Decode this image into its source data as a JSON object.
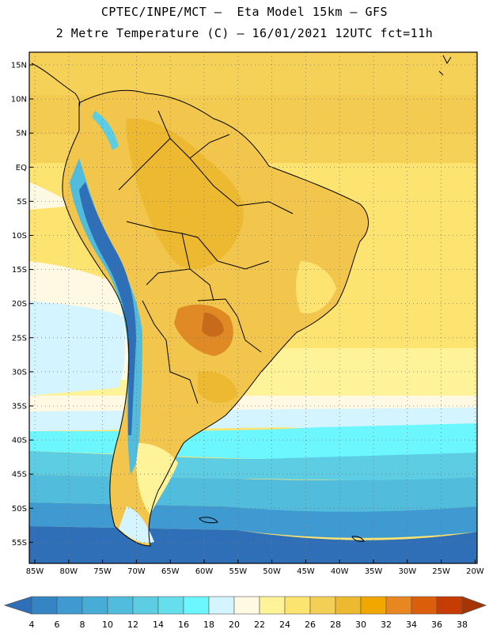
{
  "header": {
    "line1": "CPTEC/INPE/MCT –  Eta Model 15km – GFS",
    "line2": "2 Metre Temperature (C) – 16/01/2021 12UTC fct=11h"
  },
  "map": {
    "lat_ticks": [
      "15N",
      "10N",
      "5N",
      "EQ",
      "5S",
      "10S",
      "15S",
      "20S",
      "25S",
      "30S",
      "35S",
      "40S",
      "45S",
      "50S",
      "55S"
    ],
    "lon_ticks": [
      "85W",
      "80W",
      "75W",
      "70W",
      "65W",
      "60W",
      "55W",
      "50W",
      "45W",
      "40W",
      "35W",
      "30W",
      "25W",
      "20W"
    ],
    "grid": "dotted",
    "region": "South America"
  },
  "colorbar": {
    "labels": [
      "4",
      "6",
      "8",
      "10",
      "12",
      "14",
      "16",
      "18",
      "20",
      "22",
      "24",
      "26",
      "28",
      "30",
      "32",
      "34",
      "36",
      "38"
    ],
    "colors": [
      "#2e6fb8",
      "#3584c4",
      "#3e9ad0",
      "#47acd6",
      "#51bcdc",
      "#5dcde4",
      "#66dfec",
      "#6cf7ff",
      "#d4f4ff",
      "#fff8e2",
      "#fff39a",
      "#fde36f",
      "#f4cf55",
      "#edb931",
      "#f0a800",
      "#e8871f",
      "#db5f0b",
      "#c73b04",
      "#a63504"
    ]
  },
  "colors": {
    "ocean_cold": "#2d5fa0",
    "ocean_cool": "#6bf6fb",
    "land_warm": "#f2c64d",
    "land_hot": "#df8a24"
  }
}
